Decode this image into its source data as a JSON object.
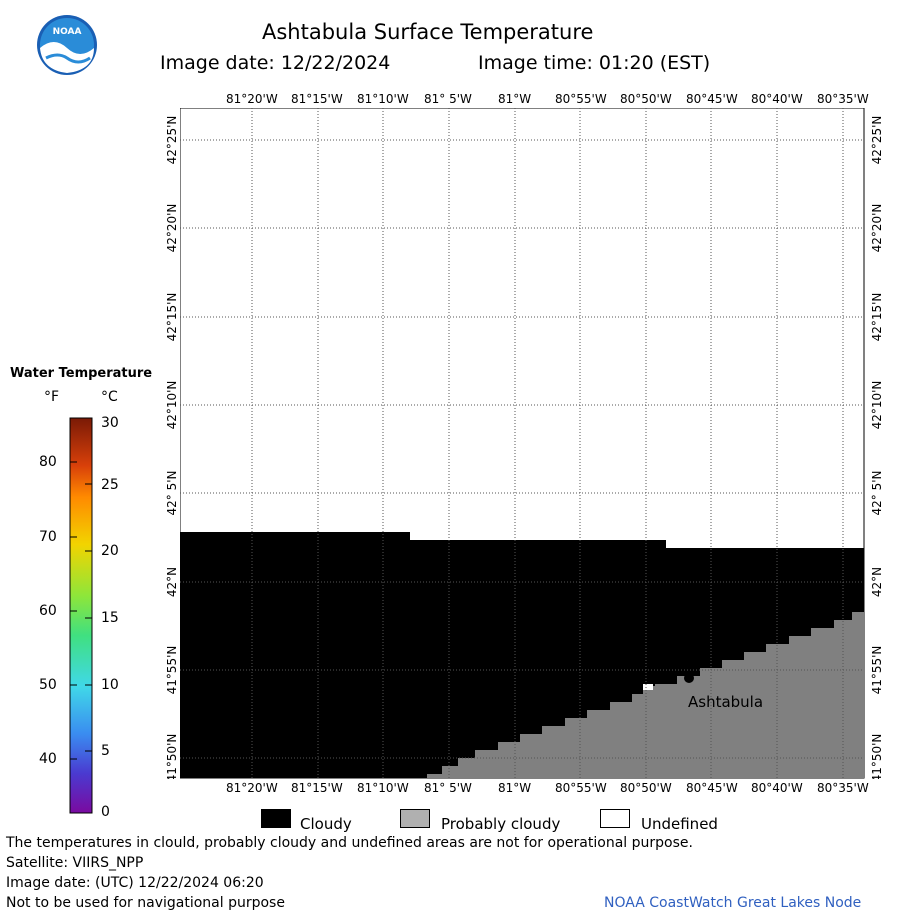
{
  "header": {
    "logo_text": "NOAA",
    "title": "Ashtabula Surface Temperature",
    "image_date": "Image date: 12/22/2024",
    "image_time": "Image time: 01:20 (EST)"
  },
  "map": {
    "lon_labels": [
      "81°20'W",
      "81°15'W",
      "81°10'W",
      "81° 5'W",
      "81°W",
      "80°55'W",
      "80°50'W",
      "80°45'W",
      "80°40'W",
      "80°35'W"
    ],
    "lat_labels": [
      "42°25'N",
      "42°20'N",
      "42°15'N",
      "42°10'N",
      "42° 5'N",
      "42°N",
      "41°55'N",
      "41°50'N"
    ],
    "place_label": "Ashtabula",
    "colors": {
      "cloudy": "#000000",
      "probably_cloudy": "#808080",
      "undefined": "#ffffff",
      "grid": "#555555"
    }
  },
  "colorbar": {
    "title": "Water Temperature",
    "unit_f": "°F",
    "unit_c": "°C",
    "f_labels": [
      "80",
      "70",
      "60",
      "50",
      "40"
    ],
    "c_labels": [
      "30",
      "25",
      "20",
      "15",
      "10",
      "5",
      "0"
    ]
  },
  "legend": {
    "cloudy": "Cloudy",
    "probably_cloudy": "Probably cloudy",
    "undefined": "Undefined"
  },
  "footer": {
    "warning": "The temperatures in clould, probably cloudy and undefined areas are not for operational purpose.",
    "satellite": "Satellite: VIIRS_NPP",
    "utc_date": "Image date: (UTC) 12/22/2024  06:20",
    "nav_warning": "Not to be used for navigational purpose",
    "credit": "NOAA CoastWatch Great Lakes Node"
  }
}
